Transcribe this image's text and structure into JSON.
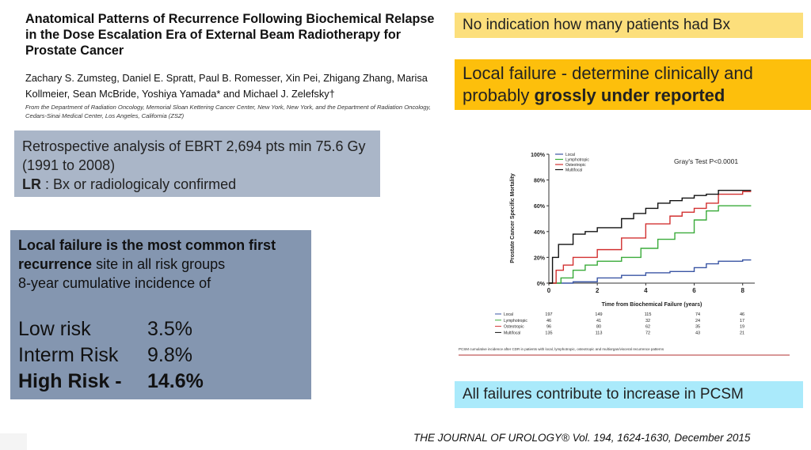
{
  "paper": {
    "title": "Anatomical Patterns of Recurrence Following Biochemical Relapse in the Dose Escalation Era of External Beam Radiotherapy for Prostate Cancer",
    "authors": "Zachary S. Zumsteg, Daniel E. Spratt, Paul B. Romesser, Xin Pei, Zhigang Zhang, Marisa Kollmeier, Sean McBride, Yoshiya Yamada* and Michael J. Zelefsky†",
    "affiliation": "From the Department of Radiation Oncology, Memorial Sloan Kettering Cancer Center, New York, New York, and the Department of Radiation Oncology, Cedars-Sinai Medical Center, Los Angeles, California (ZSZ)"
  },
  "retro_box": {
    "line1": "Retrospective analysis of EBRT 2,694  pts min 75.6 Gy  (1991 to 2008)",
    "lr_label": "LR",
    "lr_text": " : Bx or radiologicaly confirmed"
  },
  "local_box": {
    "bold1": "Local failure is the  most common first recurrence",
    "text1": " site in all risk groups",
    "line2": "8-year cumulative incidence of",
    "risks": [
      {
        "label": "Low risk",
        "value": "3.5%"
      },
      {
        "label": "Interm Risk",
        "value": "9.8%"
      },
      {
        "label": "High Risk  -",
        "value": "14.6%"
      }
    ]
  },
  "highlights": {
    "no_indication": "No indication how many patients had Bx",
    "local_failure_pre": "Local failure  - determine clinically and probably ",
    "local_failure_bold": "grossly under reported",
    "all_failures": "All failures contribute to increase in PCSM"
  },
  "journal": "THE JOURNAL OF UROLOGY® Vol. 194, 1624-1630, December 2015",
  "colors": {
    "local": "#3a55a4",
    "lymphotropic": "#3aab3a",
    "osteotropic": "#d23030",
    "multifocal": "#111111"
  },
  "chart_data": {
    "type": "line",
    "title": "",
    "annotation": "Gray's Test P<0.0001",
    "xlabel": "Time from Biochemical Failure (years)",
    "ylabel": "Prostate Cancer Specific Mortality",
    "xlim": [
      0,
      8.5
    ],
    "ylim": [
      0,
      100
    ],
    "xticks": [
      "0",
      "2",
      "4",
      "6",
      "8"
    ],
    "yticks": [
      "0%",
      "20%",
      "40%",
      "60%",
      "80%",
      "100%"
    ],
    "legend_position": "top-left",
    "series": [
      {
        "name": "Local",
        "x": [
          0,
          1,
          2,
          3,
          4,
          5,
          6,
          6.5,
          7,
          8
        ],
        "y": [
          0,
          1,
          4,
          6,
          8,
          9,
          12,
          15,
          17,
          18
        ]
      },
      {
        "name": "Lymphotropic",
        "x": [
          0,
          0.5,
          1,
          1.5,
          2,
          3,
          3.8,
          4.5,
          5.2,
          6,
          6.5,
          7,
          8
        ],
        "y": [
          0,
          4,
          10,
          14,
          17,
          20,
          27,
          34,
          39,
          49,
          56,
          60,
          60
        ]
      },
      {
        "name": "Osteotropic",
        "x": [
          0,
          0.3,
          0.6,
          1,
          2,
          3,
          4,
          5,
          5.5,
          6,
          6.5,
          7,
          8
        ],
        "y": [
          0,
          10,
          14,
          20,
          26,
          35,
          46,
          52,
          55,
          58,
          62,
          69,
          71
        ]
      },
      {
        "name": "Multifocal",
        "x": [
          0,
          0.15,
          0.4,
          1,
          1.5,
          2,
          3,
          3.5,
          4,
          4.5,
          5,
          5.5,
          6,
          6.5,
          7,
          8
        ],
        "y": [
          0,
          20,
          30,
          38,
          40,
          43,
          50,
          54,
          58,
          62,
          64,
          66,
          68,
          69,
          72,
          72
        ]
      }
    ],
    "risk_table": {
      "header": [
        "Local",
        "Lymphotropic",
        "Osteotropic",
        "Multifocal"
      ],
      "rows": [
        {
          "label": "Local",
          "values": [
            "197",
            "149",
            "115",
            "74",
            "46"
          ]
        },
        {
          "label": "Lymphotropic",
          "values": [
            "46",
            "41",
            "32",
            "24",
            "17"
          ]
        },
        {
          "label": "Osteotropic",
          "values": [
            "96",
            "80",
            "62",
            "35",
            "19"
          ]
        },
        {
          "label": "Multifocal",
          "values": [
            "135",
            "113",
            "72",
            "43",
            "21"
          ]
        }
      ]
    },
    "caption": "PCSM cumulative incidence after CDR in patients with local, lymphotropic, osteotropic and multiorgan/visceral recurrence patterns"
  }
}
